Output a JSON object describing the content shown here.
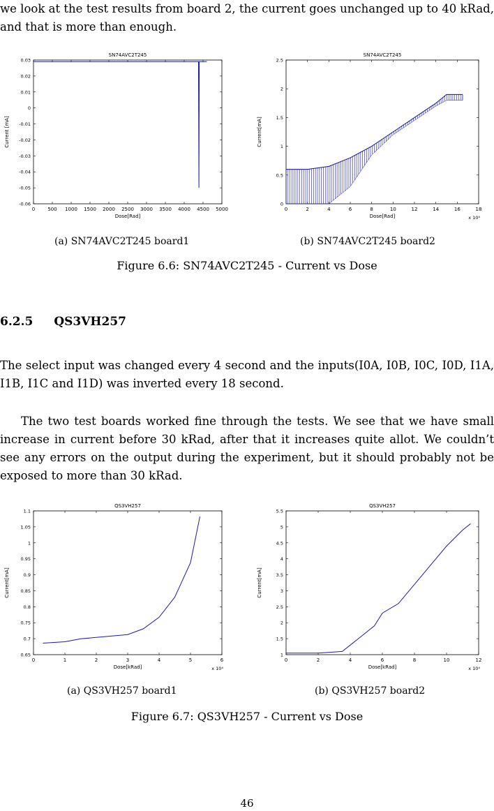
{
  "intro_text": "we look at the test results from board 2, the current goes unchanged up to 40 kRad, and that is more than enough.",
  "figure_6_6": {
    "caption": "Figure 6.6: SN74AVC2T245 - Current vs Dose",
    "sub_a": "(a) SN74AVC2T245 board1",
    "sub_b": "(b) SN74AVC2T245 board2"
  },
  "section": {
    "number": "6.2.5",
    "title": "QS3VH257"
  },
  "para1": "The select input was changed every 4 second and the inputs(I0A, I0B, I0C, I0D, I1A, I1B, I1C and I1D) was inverted every 18 second.",
  "para2": "The two test boards worked fine through the tests. We see that we have small increase in current before 30 kRad, after that it increases quite allot. We couldn’t see any errors on the output during the experiment, but it should probably not be exposed to more than 30 kRad.",
  "figure_6_7": {
    "caption": "Figure 6.7: QS3VH257 - Current vs Dose",
    "sub_a": "(a) QS3VH257 board1",
    "sub_b": "(b) QS3VH257 board2"
  },
  "page_number": "46",
  "chart_data": [
    {
      "type": "line",
      "title": "SN74AVC2T245",
      "xlabel": "Dose[Rad]",
      "ylabel": "Current [mA]",
      "xlim": [
        0,
        5000
      ],
      "ylim": [
        -0.06,
        0.03
      ],
      "xticks": [
        "0",
        "500",
        "1000",
        "1500",
        "2000",
        "2500",
        "3000",
        "3500",
        "4000",
        "4500",
        "5000"
      ],
      "yticks": [
        "0.03",
        "0.02",
        "0.01",
        "0",
        "-0.01",
        "-0.02",
        "-0.03",
        "-0.04",
        "-0.05",
        "-0.06"
      ],
      "color": "#1a1aa8",
      "x": [
        0,
        1000,
        2000,
        3000,
        4000,
        4380,
        4390,
        4400,
        4500,
        4600
      ],
      "y": [
        0.029,
        0.029,
        0.029,
        0.029,
        0.029,
        0.029,
        -0.05,
        0.029,
        0.029,
        0.029
      ]
    },
    {
      "type": "line",
      "title": "SN74AVC2T245",
      "xlabel": "Dose[Rad]",
      "ylabel": "Current[mA]",
      "x_multiplier": "x 10⁴",
      "xlim": [
        0,
        18
      ],
      "ylim": [
        0,
        2.5
      ],
      "xticks": [
        "0",
        "2",
        "4",
        "6",
        "8",
        "10",
        "12",
        "14",
        "16",
        "18"
      ],
      "yticks": [
        "2.5",
        "2",
        "1.5",
        "1",
        "0.5",
        "0"
      ],
      "color": "#1a1aa8",
      "x": [
        0,
        2,
        4,
        6,
        8,
        10,
        12,
        14,
        15,
        16.5
      ],
      "y": [
        0.6,
        0.6,
        0.65,
        0.8,
        1.0,
        1.25,
        1.5,
        1.75,
        1.9,
        1.9
      ],
      "band_low": [
        0,
        0,
        0,
        0.3,
        0.85,
        1.2,
        1.45,
        1.7,
        1.8,
        1.8
      ]
    },
    {
      "type": "line",
      "title": "QS3VH257",
      "xlabel": "Dose[kRad]",
      "ylabel": "Current[mA]",
      "x_multiplier": "x 10⁴",
      "xlim": [
        0,
        6
      ],
      "ylim": [
        0.6,
        1.1
      ],
      "xticks": [
        "0",
        "1",
        "2",
        "3",
        "4",
        "5",
        "6"
      ],
      "yticks": [
        "1.1",
        "1.05",
        "1",
        "0.95",
        "0.9",
        "0.85",
        "0.8",
        "0.75",
        "0.7",
        "0.65"
      ],
      "color": "#1a1aa8",
      "x": [
        0.3,
        1,
        1.5,
        2,
        2.5,
        3,
        3.5,
        4,
        4.5,
        5,
        5.3
      ],
      "y": [
        0.64,
        0.645,
        0.655,
        0.66,
        0.665,
        0.67,
        0.69,
        0.73,
        0.8,
        0.92,
        1.08
      ]
    },
    {
      "type": "line",
      "title": "QS3VH257",
      "xlabel": "Dose[kRad]",
      "ylabel": "Current[mA]",
      "x_multiplier": "x 10⁴",
      "xlim": [
        0,
        12
      ],
      "ylim": [
        1,
        5.5
      ],
      "xticks": [
        "0",
        "2",
        "4",
        "6",
        "8",
        "10",
        "12"
      ],
      "yticks": [
        "5.5",
        "5",
        "4.5",
        "4",
        "3.5",
        "3",
        "2.5",
        "2",
        "1.5",
        "1"
      ],
      "color": "#1a1aa8",
      "x": [
        0,
        2,
        3.5,
        4.5,
        5.5,
        6,
        7,
        8,
        9,
        10,
        11,
        11.5
      ],
      "y": [
        1.05,
        1.05,
        1.1,
        1.5,
        1.9,
        2.3,
        2.6,
        3.2,
        3.8,
        4.4,
        4.9,
        5.1
      ]
    }
  ]
}
